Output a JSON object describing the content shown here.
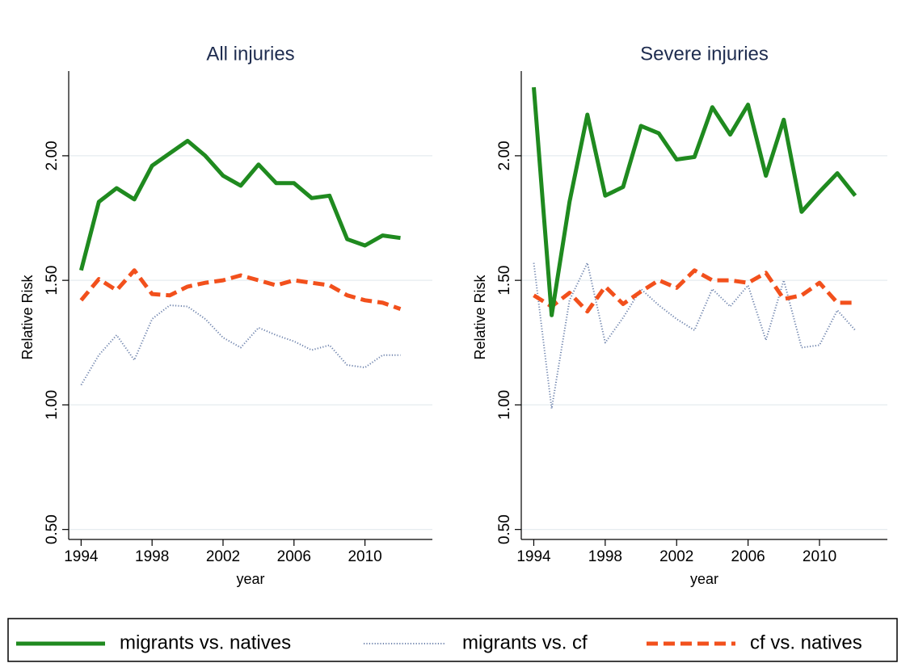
{
  "chart_data": [
    {
      "type": "line",
      "title": "All injuries",
      "xlabel": "year",
      "ylabel": "Relative Risk",
      "x": [
        1994,
        1995,
        1996,
        1997,
        1998,
        1999,
        2000,
        2001,
        2002,
        2003,
        2004,
        2005,
        2006,
        2007,
        2008,
        2009,
        2010,
        2011,
        2012
      ],
      "xlim": [
        1993.3,
        2013.8
      ],
      "xticks": [
        1994,
        1998,
        2002,
        2006,
        2010
      ],
      "ylim": [
        0.46,
        2.34
      ],
      "yticks": [
        {
          "value": 0.5,
          "label": "0.50"
        },
        {
          "value": 1,
          "label": "1.00"
        },
        {
          "value": 1.5,
          "label": "1.50"
        },
        {
          "value": 2,
          "label": "2.00"
        }
      ],
      "grid": true,
      "series": [
        {
          "name": "migrants vs. natives",
          "color": "#1f8a1f",
          "style": "solid",
          "values": [
            1.54,
            1.815,
            1.87,
            1.825,
            1.96,
            2.01,
            2.06,
            2.0,
            1.92,
            1.88,
            1.965,
            1.89,
            1.89,
            1.83,
            1.84,
            1.665,
            1.64,
            1.68,
            1.67
          ]
        },
        {
          "name": "migrants vs. cf",
          "color": "#6f84ad",
          "style": "dotted",
          "values": [
            1.08,
            1.2,
            1.28,
            1.18,
            1.345,
            1.4,
            1.395,
            1.345,
            1.27,
            1.23,
            1.31,
            1.28,
            1.255,
            1.22,
            1.24,
            1.16,
            1.15,
            1.2,
            1.2
          ]
        },
        {
          "name": "cf vs. natives",
          "color": "#f2501c",
          "style": "dashed",
          "values": [
            1.42,
            1.505,
            1.46,
            1.54,
            1.445,
            1.44,
            1.475,
            1.49,
            1.5,
            1.52,
            1.5,
            1.48,
            1.5,
            1.49,
            1.48,
            1.44,
            1.42,
            1.41,
            1.385
          ]
        }
      ]
    },
    {
      "type": "line",
      "title": "Severe injuries",
      "xlabel": "year",
      "ylabel": "Relative Risk",
      "x": [
        1994,
        1995,
        1996,
        1997,
        1998,
        1999,
        2000,
        2001,
        2002,
        2003,
        2004,
        2005,
        2006,
        2007,
        2008,
        2009,
        2010,
        2011,
        2012
      ],
      "xlim": [
        1993.3,
        2013.8
      ],
      "xticks": [
        1994,
        1998,
        2002,
        2006,
        2010
      ],
      "ylim": [
        0.46,
        2.34
      ],
      "yticks": [
        {
          "value": 0.5,
          "label": "0.50"
        },
        {
          "value": 1,
          "label": "1.00"
        },
        {
          "value": 1.5,
          "label": "1.50"
        },
        {
          "value": 2,
          "label": "2.00"
        }
      ],
      "grid": true,
      "series": [
        {
          "color": "#1f8a1f",
          "style": "solid",
          "values": [
            2.275,
            1.36,
            1.815,
            2.165,
            1.84,
            1.875,
            2.12,
            2.09,
            1.985,
            1.995,
            2.195,
            2.085,
            2.205,
            1.92,
            2.145,
            1.775,
            1.855,
            1.93,
            1.84
          ]
        },
        {
          "color": "#6f84ad",
          "style": "dotted",
          "values": [
            1.57,
            0.985,
            1.42,
            1.57,
            1.25,
            1.35,
            1.465,
            1.4,
            1.345,
            1.3,
            1.465,
            1.395,
            1.48,
            1.26,
            1.5,
            1.23,
            1.24,
            1.38,
            1.3
          ]
        },
        {
          "color": "#f2501c",
          "style": "dashed",
          "values": [
            1.44,
            1.395,
            1.45,
            1.375,
            1.475,
            1.405,
            1.455,
            1.5,
            1.47,
            1.54,
            1.5,
            1.5,
            1.49,
            1.53,
            1.425,
            1.44,
            1.49,
            1.41,
            1.41
          ]
        }
      ]
    }
  ]
}
